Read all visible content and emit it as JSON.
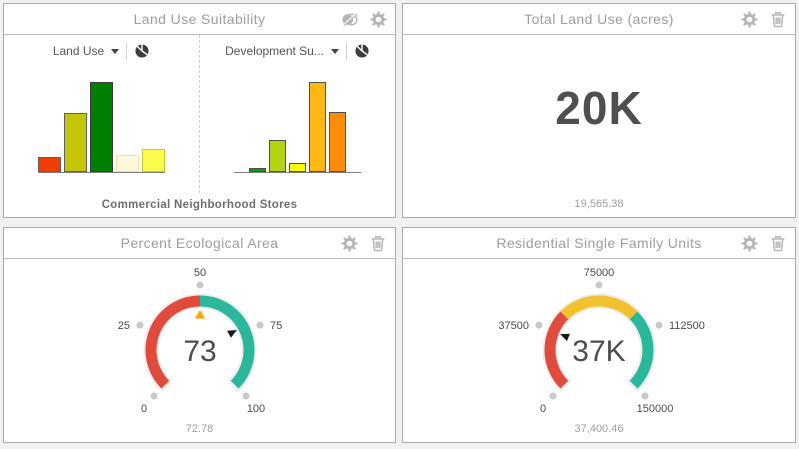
{
  "panels": {
    "land_use": {
      "title": "Land Use Suitability",
      "selectors": [
        {
          "label": "Land Use"
        },
        {
          "label": "Development Su..."
        }
      ],
      "category_label": "Commercial Neighborhood Stores"
    },
    "total_land_use": {
      "title": "Total Land Use (acres)",
      "value": "20K",
      "footer": "19,565.38"
    },
    "ecological": {
      "title": "Percent Ecological Area",
      "footer": "72.78"
    },
    "residential": {
      "title": "Residential Single Family Units",
      "footer": "37,400.46"
    }
  },
  "colors": {
    "panel_border": "#a9a9a9",
    "title_text": "#9d9d9d",
    "header_icon": "#b5b5b5",
    "gauge_track": "#ececec",
    "gauge_red": "#e04b3b",
    "gauge_teal": "#2bb79b",
    "gauge_yellow": "#f2c12e",
    "threshold_marker": "#ffa500",
    "needle": "#1a1a1a"
  },
  "chart_data": [
    {
      "type": "bar",
      "title": "Land Use",
      "category": "Commercial Neighborhood Stores",
      "values": [
        17,
        65,
        100,
        19,
        25
      ],
      "values_note": "relative bar heights (% of tallest bar); no numeric axis shown in widget",
      "colors": [
        "#f23d00",
        "#c6c609",
        "#008000",
        "#fdf9d8",
        "#fbfb4e"
      ],
      "border_colors": [
        "#606060",
        "#606060",
        "#3a3a3a",
        "#e7e2bb",
        "#c7c72e"
      ],
      "legend": "off",
      "grid": "off"
    },
    {
      "type": "bar",
      "title": "Development Su...",
      "category": "Commercial Neighborhood Stores",
      "values": [
        4,
        36,
        10,
        100,
        67
      ],
      "values_note": "relative bar heights (% of tallest bar); no numeric axis shown in widget",
      "colors": [
        "#0aa00a",
        "#b4d413",
        "#fdfd02",
        "#fdb813",
        "#fb8d07"
      ],
      "border_colors": [
        "#4f4f4f",
        "#4f4f4f",
        "#4f4f4f",
        "#4f4f4f",
        "#4f4f4f"
      ],
      "legend": "off",
      "grid": "off"
    },
    {
      "type": "gauge",
      "title": "Percent Ecological Area",
      "min": 0,
      "max": 100,
      "value": 72.78,
      "display": "73",
      "tick_labels": [
        "0",
        "25",
        "50",
        "75",
        "100"
      ],
      "threshold": 50,
      "segments": [
        {
          "from": 0,
          "to": 50,
          "color": "#e04b3b"
        },
        {
          "from": 50,
          "to": 100,
          "color": "#2bb79b"
        }
      ]
    },
    {
      "type": "gauge",
      "title": "Residential Single Family Units",
      "min": 0,
      "max": 150000,
      "value": 37400.46,
      "display": "37K",
      "tick_labels": [
        "0",
        "37500",
        "75000",
        "112500",
        "150000"
      ],
      "segments": [
        {
          "from": 0,
          "to": 50000,
          "color": "#e04b3b"
        },
        {
          "from": 50000,
          "to": 100000,
          "color": "#f2c12e"
        },
        {
          "from": 100000,
          "to": 150000,
          "color": "#2bb79b"
        }
      ]
    }
  ]
}
